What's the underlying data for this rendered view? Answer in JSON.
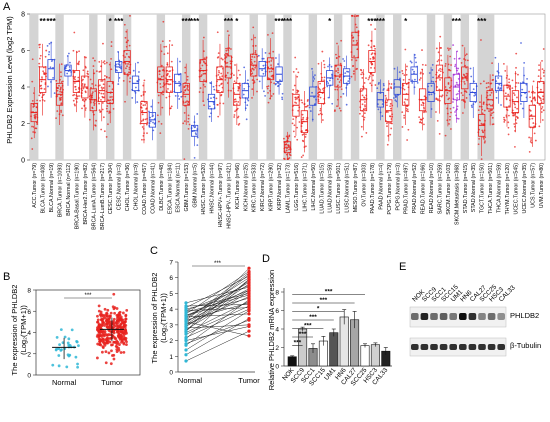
{
  "panels": {
    "A": {
      "label": "A",
      "ylabel": "PHLDB2 Expression Level (log2 TPM)",
      "yticks": [
        "0",
        "2",
        "4",
        "6",
        "8"
      ],
      "shaded": [
        0,
        3,
        7,
        9,
        11,
        15,
        18,
        20,
        23,
        26,
        28,
        30,
        33,
        36,
        38,
        41,
        43,
        47,
        49,
        51,
        53
      ],
      "sig": [
        {
          "i": 1,
          "t": "**"
        },
        {
          "i": 2,
          "t": "***"
        },
        {
          "i": 9,
          "t": "*"
        },
        {
          "i": 10,
          "t": "***"
        },
        {
          "i": 18,
          "t": "***"
        },
        {
          "i": 19,
          "t": "***"
        },
        {
          "i": 23,
          "t": "***"
        },
        {
          "i": 24,
          "t": "*"
        },
        {
          "i": 29,
          "t": "***"
        },
        {
          "i": 30,
          "t": "***"
        },
        {
          "i": 35,
          "t": "*"
        },
        {
          "i": 40,
          "t": "***"
        },
        {
          "i": 41,
          "t": "***"
        },
        {
          "i": 44,
          "t": "*"
        },
        {
          "i": 50,
          "t": "***"
        },
        {
          "i": 53,
          "t": "***"
        }
      ],
      "categories": [
        "ACC.Tumor (n=79)",
        "BLCA.Tumor (n=408)",
        "BLCA.Normal (n=19)",
        "BRCA.Tumor (n=1093)",
        "BRCA.Normal (n=112)",
        "BRCA-Basal.Tumor (n=190)",
        "BRCA-Her2.Tumor (n=82)",
        "BRCA-LumA.Tumor (n=564)",
        "BRCA-LumB.Tumor (n=217)",
        "CESC.Tumor (n=304)",
        "CESC.Normal (n=3)",
        "CHOL.Tumor (n=36)",
        "CHOL.Normal (n=9)",
        "COAD.Tumor (n=457)",
        "COAD.Normal (n=41)",
        "DLBC.Tumor (n=48)",
        "ESCA.Tumor (n=184)",
        "ESCA.Normal (n=11)",
        "GBM.Tumor (n=153)",
        "GBM.Normal (n=5)",
        "HNSC.Tumor (n=520)",
        "HNSC.Normal (n=44)",
        "HNSC-HPV+.Tumor (n=97)",
        "HNSC-HPV-.Tumor (n=421)",
        "KICH.Tumor (n=66)",
        "KICH.Normal (n=25)",
        "KIRC.Tumor (n=533)",
        "KIRC.Normal (n=72)",
        "KIRP.Tumor (n=290)",
        "KIRP.Normal (n=32)",
        "LAML.Tumor (n=173)",
        "LGG.Tumor (n=516)",
        "LIHC.Tumor (n=371)",
        "LIHC.Normal (n=50)",
        "LUAD.Tumor (n=515)",
        "LUAD.Normal (n=59)",
        "LUSC.Tumor (n=501)",
        "LUSC.Normal (n=51)",
        "MESO.Tumor (n=87)",
        "OV.Tumor (n=303)",
        "PAAD.Tumor (n=178)",
        "PAAD.Normal (n=4)",
        "PCPG.Tumor (n=179)",
        "PCPG.Normal (n=3)",
        "PRAD.Tumor (n=497)",
        "PRAD.Normal (n=52)",
        "READ.Tumor (n=166)",
        "READ.Normal (n=10)",
        "SARC.Tumor (n=259)",
        "SKCM.Tumor (n=103)",
        "SKCM.Metastasis (n=368)",
        "STAD.Tumor (n=415)",
        "STAD.Normal (n=35)",
        "TGCT.Tumor (n=150)",
        "THCA.Tumor (n=501)",
        "THCA.Normal (n=59)",
        "THYM.Tumor (n=120)",
        "UCEC.Tumor (n=545)",
        "UCEC.Normal (n=35)",
        "UCS.Tumor (n=57)",
        "UVM.Tumor (n=80)"
      ]
    },
    "B": {
      "label": "B",
      "ylabel_line1": "The expression of PHLDB2",
      "ylabel_line2": "(Log₂(TPM+1))",
      "yticks": [
        "0",
        "2",
        "4",
        "6",
        "8"
      ],
      "groups": [
        "Normal",
        "Tumor"
      ],
      "sig": "***"
    },
    "C": {
      "label": "C",
      "ylabel_line1": "The expression of PHLDB2",
      "ylabel_line2": "(Log₂(TPM+1))",
      "yticks": [
        "0",
        "1",
        "2",
        "3",
        "4",
        "5",
        "6",
        "7"
      ],
      "groups": [
        "Normal",
        "Tumor"
      ],
      "sig": "***"
    },
    "D": {
      "label": "D",
      "ylabel": "Relative PHLDB2 mRNA expression",
      "yticks": [
        "0",
        "2",
        "4",
        "6",
        "8"
      ],
      "sig": [
        "***",
        "***",
        "***",
        "***",
        "*",
        "***",
        "***"
      ]
    },
    "E": {
      "label": "E",
      "lanes": [
        "NOK",
        "SCC9",
        "SCC1",
        "SCC15",
        "UM1",
        "HN6",
        "CAL27",
        "SCC25",
        "HSC3",
        "CAL33"
      ],
      "bands": [
        "PHLDB2",
        "β-Tubulin"
      ]
    }
  },
  "chart_data": [
    {
      "panel": "A",
      "type": "box",
      "ylim": [
        0,
        8
      ],
      "ylabel": "PHLDB2 Expression Level (log2 TPM)",
      "categories": [
        "ACC.Tumor (n=79)",
        "BLCA.Tumor (n=408)",
        "BLCA.Normal (n=19)",
        "BRCA.Tumor (n=1093)",
        "BRCA.Normal (n=112)",
        "BRCA-Basal.Tumor (n=190)",
        "BRCA-Her2.Tumor (n=82)",
        "BRCA-LumA.Tumor (n=564)",
        "BRCA-LumB.Tumor (n=217)",
        "CESC.Tumor (n=304)",
        "CESC.Normal (n=3)",
        "CHOL.Tumor (n=36)",
        "CHOL.Normal (n=9)",
        "COAD.Tumor (n=457)",
        "COAD.Normal (n=41)",
        "DLBC.Tumor (n=48)",
        "ESCA.Tumor (n=184)",
        "ESCA.Normal (n=11)",
        "GBM.Tumor (n=153)",
        "GBM.Normal (n=5)",
        "HNSC.Tumor (n=520)",
        "HNSC.Normal (n=44)",
        "HNSC-HPV+.Tumor (n=97)",
        "HNSC-HPV-.Tumor (n=421)",
        "KICH.Tumor (n=66)",
        "KICH.Normal (n=25)",
        "KIRC.Tumor (n=533)",
        "KIRC.Normal (n=72)",
        "KIRP.Tumor (n=290)",
        "KIRP.Normal (n=32)",
        "LAML.Tumor (n=173)",
        "LGG.Tumor (n=516)",
        "LIHC.Tumor (n=371)",
        "LIHC.Normal (n=50)",
        "LUAD.Tumor (n=515)",
        "LUAD.Normal (n=59)",
        "LUSC.Tumor (n=501)",
        "LUSC.Normal (n=51)",
        "MESO.Tumor (n=87)",
        "OV.Tumor (n=303)",
        "PAAD.Tumor (n=178)",
        "PAAD.Normal (n=4)",
        "PCPG.Tumor (n=179)",
        "PCPG.Normal (n=3)",
        "PRAD.Tumor (n=497)",
        "PRAD.Normal (n=52)",
        "READ.Tumor (n=166)",
        "READ.Normal (n=10)",
        "SARC.Tumor (n=259)",
        "SKCM.Tumor (n=103)",
        "SKCM.Metastasis (n=368)",
        "STAD.Tumor (n=415)",
        "STAD.Normal (n=35)",
        "TGCT.Tumor (n=150)",
        "THCA.Tumor (n=501)",
        "THCA.Normal (n=59)",
        "THYM.Tumor (n=120)",
        "UCEC.Tumor (n=545)",
        "UCEC.Normal (n=35)",
        "UCS.Tumor (n=57)",
        "UVM.Tumor (n=80)"
      ],
      "groups": [
        "T",
        "T",
        "N",
        "T",
        "N",
        "T",
        "T",
        "T",
        "T",
        "T",
        "N",
        "T",
        "N",
        "T",
        "N",
        "T",
        "T",
        "N",
        "T",
        "N",
        "T",
        "N",
        "T",
        "T",
        "T",
        "N",
        "T",
        "N",
        "T",
        "N",
        "T",
        "T",
        "T",
        "N",
        "T",
        "N",
        "T",
        "N",
        "T",
        "T",
        "T",
        "N",
        "T",
        "N",
        "T",
        "N",
        "T",
        "N",
        "T",
        "T",
        "M",
        "T",
        "N",
        "T",
        "T",
        "N",
        "T",
        "T",
        "N",
        "T",
        "T"
      ],
      "medians": [
        2.6,
        4.4,
        5.0,
        3.6,
        4.9,
        4.3,
        4.0,
        3.3,
        3.8,
        3.7,
        5.1,
        5.4,
        4.2,
        2.6,
        2.2,
        4.4,
        4.4,
        4.2,
        3.6,
        1.6,
        4.9,
        3.2,
        4.4,
        5.1,
        3.6,
        3.8,
        5.2,
        5.0,
        5.0,
        4.7,
        0.7,
        3.0,
        2.1,
        3.5,
        3.7,
        4.5,
        4.6,
        4.6,
        6.3,
        3.3,
        5.4,
        3.3,
        2.7,
        4.0,
        3.6,
        4.7,
        3.3,
        3.7,
        4.5,
        3.8,
        4.0,
        4.5,
        3.7,
        1.9,
        3.3,
        4.2,
        3.5,
        3.2,
        3.7,
        2.4,
        3.7
      ],
      "q1": [
        2.1,
        3.7,
        4.4,
        3.0,
        4.6,
        3.7,
        3.4,
        2.7,
        3.2,
        3.1,
        4.8,
        4.7,
        3.8,
        2.0,
        1.8,
        3.7,
        3.7,
        3.7,
        3.0,
        1.3,
        4.3,
        2.8,
        3.7,
        4.5,
        3.0,
        3.4,
        4.6,
        4.6,
        4.4,
        4.3,
        0.4,
        2.4,
        1.5,
        3.0,
        3.1,
        4.1,
        4.0,
        4.2,
        5.6,
        2.7,
        4.8,
        2.9,
        2.1,
        3.6,
        3.0,
        4.3,
        2.7,
        3.2,
        3.8,
        3.1,
        3.3,
        3.9,
        3.2,
        1.3,
        2.8,
        3.8,
        2.9,
        2.6,
        3.2,
        1.8,
        3.1
      ],
      "q3": [
        3.1,
        5.1,
        5.5,
        4.2,
        5.2,
        4.9,
        4.6,
        3.9,
        4.4,
        4.3,
        5.4,
        6.0,
        4.6,
        3.2,
        2.6,
        5.1,
        5.1,
        4.7,
        4.2,
        1.9,
        5.5,
        3.6,
        5.1,
        5.7,
        4.2,
        4.2,
        5.8,
        5.4,
        5.6,
        5.1,
        1.0,
        3.6,
        2.7,
        4.0,
        4.3,
        4.9,
        5.2,
        5.0,
        7.0,
        3.9,
        6.0,
        3.7,
        3.3,
        4.4,
        4.2,
        5.1,
        3.9,
        4.2,
        5.2,
        4.5,
        4.7,
        5.1,
        4.2,
        2.5,
        3.8,
        4.6,
        4.1,
        3.8,
        4.2,
        3.0,
        4.3
      ],
      "significance": {
        "BLCA": "**",
        "BRCA": "***",
        "CHOL": "*",
        "COAD": "***",
        "HNSC": "***",
        "HNSC-HPV": "***",
        "KIRC": "***",
        "KIRP": "*",
        "LIHC": "***",
        "LUAD": "***",
        "PAAD": "*",
        "PRAD": "***",
        "READ": "***",
        "STAD": "*",
        "THCA": "***",
        "UCEC": "***"
      }
    },
    {
      "panel": "B",
      "type": "scatter",
      "categories": [
        "Normal",
        "Tumor"
      ],
      "ylabel": "The expression of PHLDB2 (Log₂(TPM+1))",
      "ylim": [
        0,
        8
      ],
      "normal": {
        "median": 2.6,
        "q1": 1.9,
        "q3": 3.1,
        "n_points": 32,
        "min": 0.6,
        "max": 4.4
      },
      "tumor": {
        "median": 4.3,
        "q1": 3.6,
        "q3": 5.0,
        "n_points": 300,
        "min": 1.0,
        "max": 7.6
      },
      "significance": "***"
    },
    {
      "panel": "C",
      "type": "line",
      "categories": [
        "Normal",
        "Tumor"
      ],
      "ylabel": "The expression of PHLDB2 (Log₂(TPM+1))",
      "ylim": [
        0,
        7
      ],
      "pairs": [
        [
          1.1,
          3.4
        ],
        [
          1.7,
          4.6
        ],
        [
          2.1,
          5.9
        ],
        [
          2.4,
          4.2
        ],
        [
          2.6,
          6.6
        ],
        [
          2.7,
          5.1
        ],
        [
          2.8,
          3.0
        ],
        [
          2.9,
          5.6
        ],
        [
          3.0,
          4.8
        ],
        [
          3.1,
          6.2
        ],
        [
          3.2,
          2.3
        ],
        [
          3.2,
          5.3
        ],
        [
          3.3,
          4.4
        ],
        [
          3.4,
          6.0
        ],
        [
          3.5,
          5.7
        ],
        [
          3.5,
          3.7
        ],
        [
          3.6,
          5.2
        ],
        [
          3.7,
          6.4
        ],
        [
          3.8,
          4.9
        ],
        [
          3.9,
          5.5
        ],
        [
          4.0,
          5.0
        ],
        [
          4.1,
          6.1
        ],
        [
          4.2,
          4.3
        ],
        [
          4.4,
          5.4
        ],
        [
          0.7,
          2.6
        ],
        [
          1.4,
          3.9
        ],
        [
          2.0,
          2.9
        ],
        [
          2.5,
          4.5
        ],
        [
          3.0,
          5.8
        ],
        [
          3.6,
          4.7
        ],
        [
          2.2,
          4.0
        ],
        [
          2.9,
          5.2
        ],
        [
          1.8,
          3.3
        ],
        [
          3.3,
          6.3
        ],
        [
          2.6,
          5.9
        ],
        [
          3.9,
          4.1
        ]
      ],
      "significance": "***"
    },
    {
      "panel": "D",
      "type": "bar",
      "categories": [
        "NOK",
        "SCC9",
        "SCC1",
        "SCC15",
        "UM1",
        "HN6",
        "CAL27",
        "SCC25",
        "HSC3",
        "CAL33"
      ],
      "values": [
        1.0,
        4.0,
        1.9,
        2.7,
        3.6,
        5.3,
        5.0,
        2.2,
        2.3,
        1.6
      ],
      "errors": [
        0.1,
        0.2,
        0.5,
        0.5,
        0.4,
        0.8,
        0.9,
        0.2,
        0.2,
        0.4
      ],
      "ylim": [
        0,
        8
      ],
      "ylabel": "Relative PHLDB2 mRNA expression",
      "significance": [
        {
          "from": "NOK",
          "to": "SCC9",
          "t": "***"
        },
        {
          "from": "NOK",
          "to": "SCC1",
          "t": "***"
        },
        {
          "from": "NOK",
          "to": "SCC15",
          "t": "***"
        },
        {
          "from": "NOK",
          "to": "UM1",
          "t": "***"
        },
        {
          "from": "NOK",
          "to": "HN6",
          "t": "*"
        },
        {
          "from": "NOK",
          "to": "CAL27",
          "t": "***"
        },
        {
          "from": "NOK",
          "to": "SCC25",
          "t": "***"
        }
      ]
    }
  ],
  "colors": {
    "tumor": "#e8211d",
    "normal": "#2b47d8",
    "metastasis": "#a12ad4",
    "shade": "#d4d4d4",
    "cyan": "#2fb7d6",
    "bar_nok": "#111111"
  }
}
